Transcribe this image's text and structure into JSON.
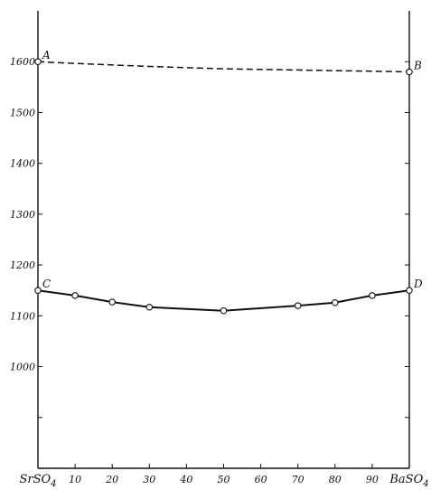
{
  "chart_data": {
    "type": "line",
    "title": "",
    "xlabel": "",
    "ylabel": "",
    "xlim": [
      0,
      100
    ],
    "ylim": [
      800,
      1700
    ],
    "grid": false,
    "x_tick_labels": [
      {
        "x": 0,
        "label": "SrSO",
        "sub": "4"
      },
      {
        "x": 10,
        "label": "10"
      },
      {
        "x": 20,
        "label": "20"
      },
      {
        "x": 30,
        "label": "30"
      },
      {
        "x": 40,
        "label": "40"
      },
      {
        "x": 50,
        "label": "50"
      },
      {
        "x": 60,
        "label": "60"
      },
      {
        "x": 70,
        "label": "70"
      },
      {
        "x": 80,
        "label": "80"
      },
      {
        "x": 90,
        "label": "90"
      },
      {
        "x": 100,
        "label": "BaSO",
        "sub": "4"
      }
    ],
    "y_ticks": [
      900,
      1000,
      1100,
      1200,
      1300,
      1400,
      1500,
      1600
    ],
    "y_tick_labels": [
      {
        "y": 1000,
        "label": "1000"
      },
      {
        "y": 1100,
        "label": "1100"
      },
      {
        "y": 1200,
        "label": "1200"
      },
      {
        "y": 1300,
        "label": "1300"
      },
      {
        "y": 1400,
        "label": "1400"
      },
      {
        "y": 1500,
        "label": "1500"
      },
      {
        "y": 1600,
        "label": "1600"
      }
    ],
    "series": [
      {
        "style": "dashed",
        "markers": "endpoints",
        "x": [
          0,
          50,
          100
        ],
        "y": [
          1600,
          1586,
          1580
        ]
      },
      {
        "style": "solid",
        "markers": "all",
        "x": [
          0,
          10,
          20,
          30,
          50,
          70,
          80,
          90,
          100
        ],
        "y": [
          1150,
          1140,
          1127,
          1117,
          1110,
          1120,
          1126,
          1140,
          1150
        ]
      }
    ],
    "annotations": [
      {
        "text": "A",
        "x": 0,
        "y": 1600,
        "side": "right"
      },
      {
        "text": "B",
        "x": 100,
        "y": 1580,
        "side": "right"
      },
      {
        "text": "C",
        "x": 0,
        "y": 1150,
        "side": "right"
      },
      {
        "text": "D",
        "x": 100,
        "y": 1150,
        "side": "right"
      }
    ]
  }
}
